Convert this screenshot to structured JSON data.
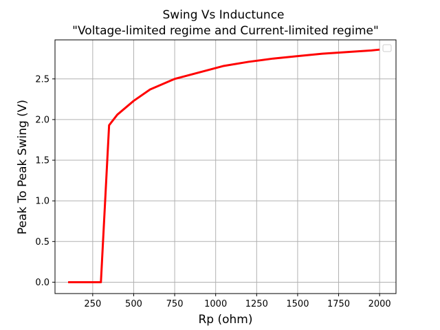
{
  "chart_data": {
    "type": "line",
    "title": "Swing Vs Inductunce",
    "subtitle": "\"Voltage-limited regime and Current-limited regime\"",
    "xlabel": "Rp (ohm)",
    "ylabel": "Peak To Peak Swing (V)",
    "xlim": [
      20,
      2100
    ],
    "ylim": [
      -0.14,
      2.98
    ],
    "grid": true,
    "legend": {
      "placement": "top-right",
      "entries": []
    },
    "x_ticks": [
      250,
      500,
      750,
      1000,
      1250,
      1500,
      1750,
      2000
    ],
    "x_tick_labels": [
      "250",
      "500",
      "750",
      "1000",
      "1250",
      "1500",
      "1750",
      "2000"
    ],
    "y_ticks": [
      0.0,
      0.5,
      1.0,
      1.5,
      2.0,
      2.5
    ],
    "y_tick_labels": [
      "0.0",
      "0.5",
      "1.0",
      "1.5",
      "2.0",
      "2.5"
    ],
    "series": [
      {
        "color": "#ff0000",
        "x": [
          100,
          200,
          300,
          350,
          400,
          500,
          600,
          750,
          900,
          1050,
          1200,
          1350,
          1500,
          1650,
          1800,
          1950,
          2000
        ],
        "y": [
          0.0,
          0.0,
          0.0,
          1.93,
          2.06,
          2.23,
          2.37,
          2.5,
          2.58,
          2.66,
          2.71,
          2.75,
          2.78,
          2.81,
          2.83,
          2.85,
          2.86
        ]
      }
    ]
  }
}
